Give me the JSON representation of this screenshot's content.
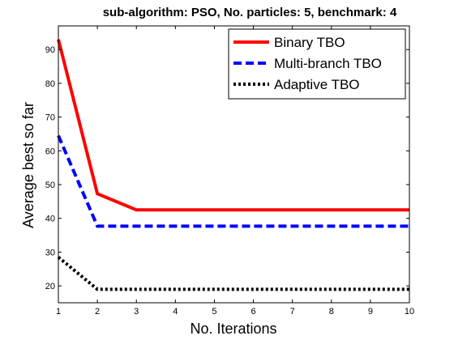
{
  "chart_data": {
    "type": "line",
    "title": "sub-algorithm: PSO, No. particles: 5, benchmark: 4",
    "xlabel": "No. Iterations",
    "ylabel": "Average best so far",
    "xlim": [
      1,
      10
    ],
    "ylim": [
      15,
      97
    ],
    "xticks": [
      1,
      2,
      3,
      4,
      5,
      6,
      7,
      8,
      9,
      10
    ],
    "yticks": [
      20,
      30,
      40,
      50,
      60,
      70,
      80,
      90
    ],
    "grid": false,
    "legend_position": "top-right",
    "x": [
      1,
      2,
      3,
      4,
      5,
      6,
      7,
      8,
      9,
      10
    ],
    "series": [
      {
        "name": "Binary TBO",
        "values": [
          93,
          47.3,
          42.5,
          42.5,
          42.5,
          42.5,
          42.5,
          42.5,
          42.5,
          42.5
        ],
        "color": "#ff0000",
        "style": "solid"
      },
      {
        "name": "Multi-branch TBO",
        "values": [
          64.5,
          37.7,
          37.7,
          37.7,
          37.7,
          37.7,
          37.7,
          37.7,
          37.7,
          37.7
        ],
        "color": "#0000ff",
        "style": "dashed"
      },
      {
        "name": "Adaptive TBO",
        "values": [
          28.5,
          19,
          19,
          19,
          19,
          19,
          19,
          19,
          19,
          19
        ],
        "color": "#000000",
        "style": "dotted"
      }
    ]
  }
}
